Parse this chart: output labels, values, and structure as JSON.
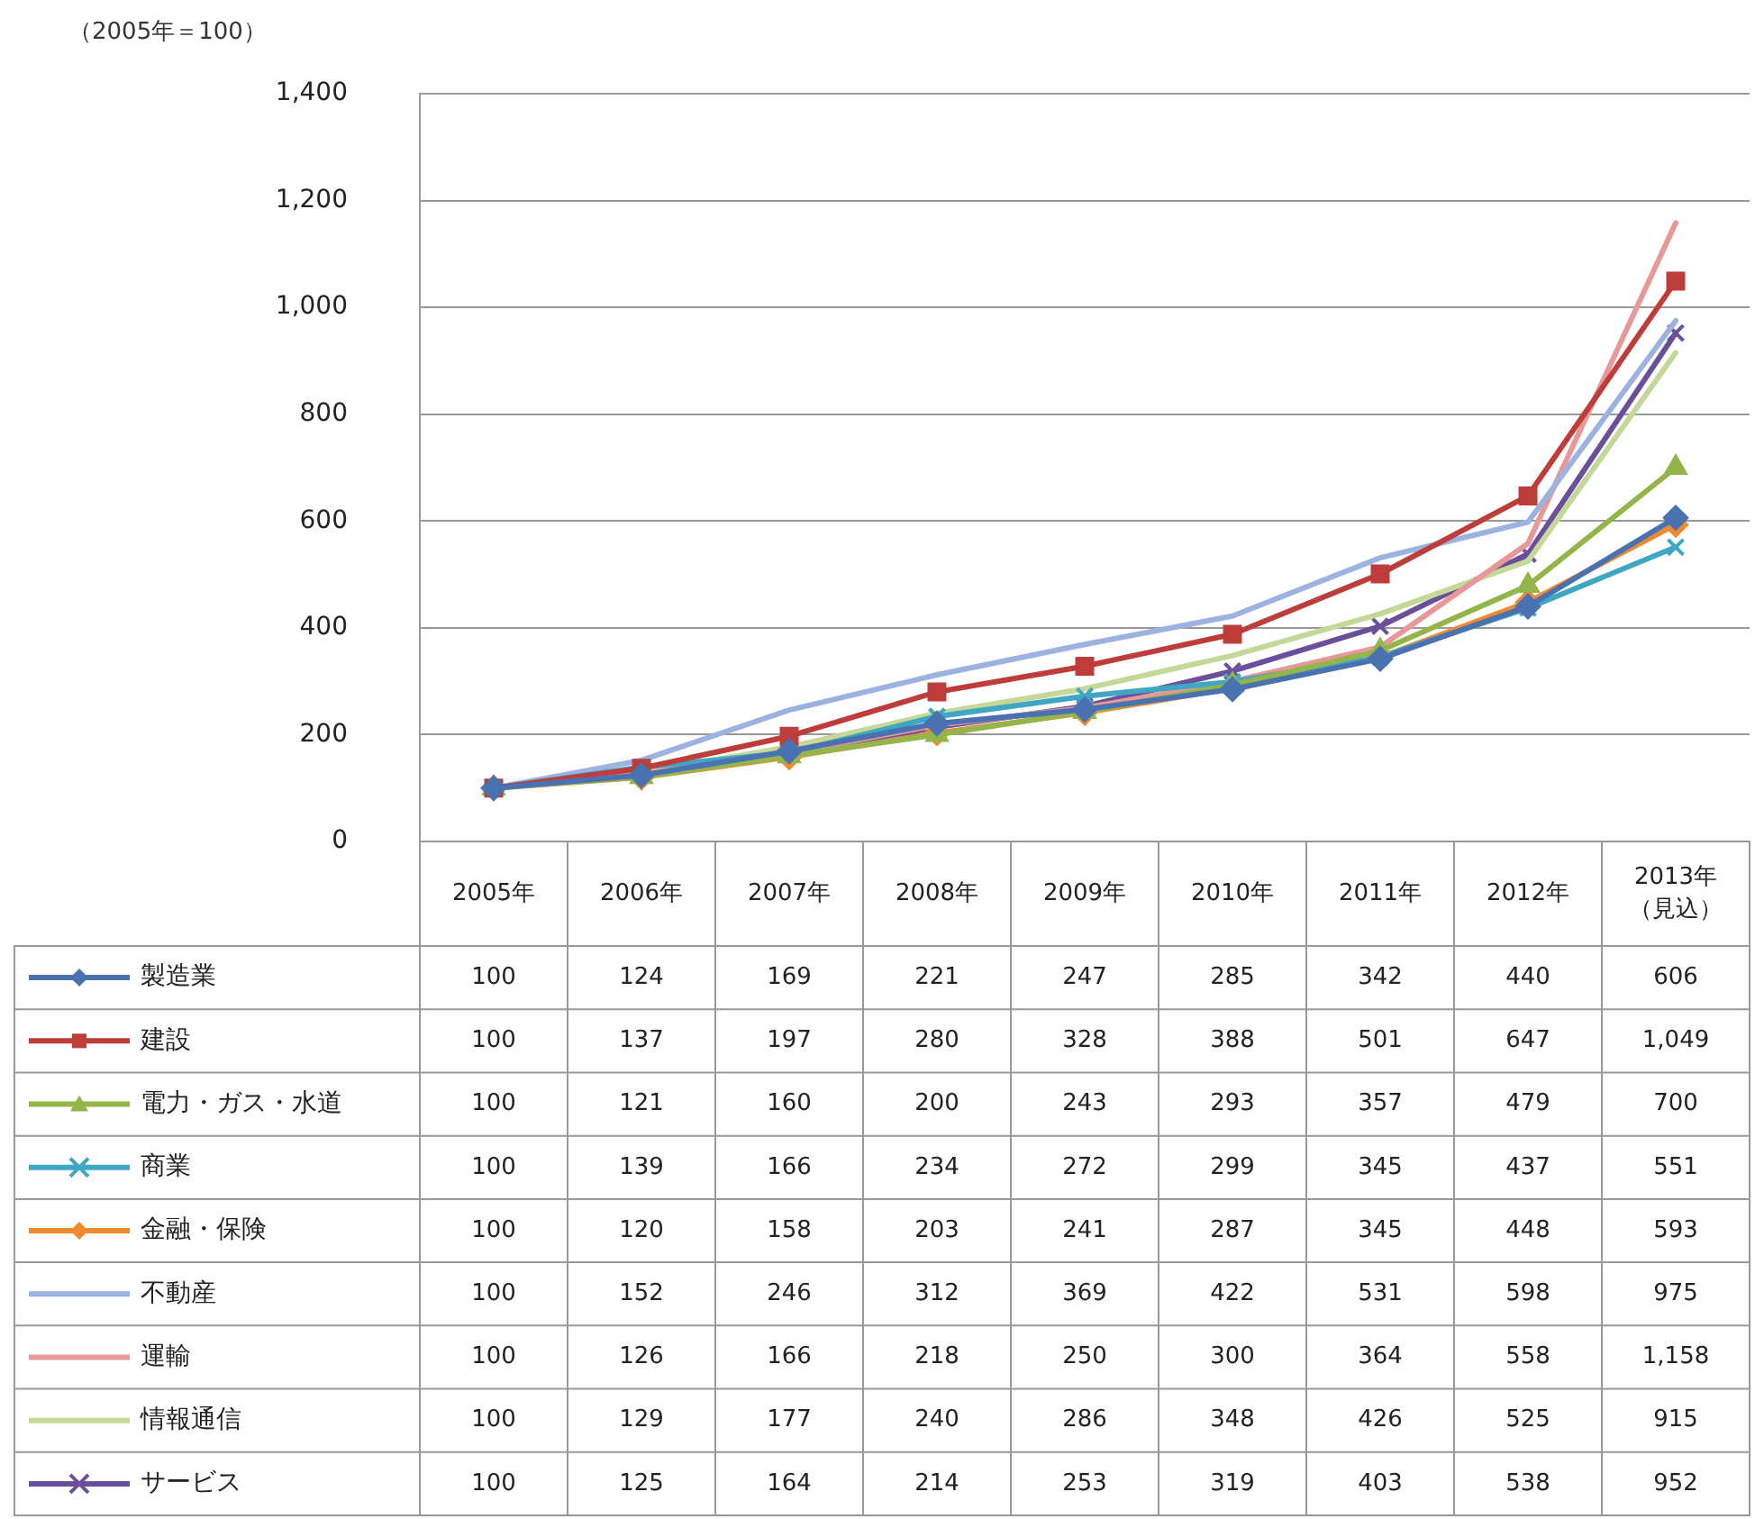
{
  "chart_data": {
    "type": "line",
    "ylabel": "（2005年＝100）",
    "categories": [
      "2005年",
      "2006年",
      "2007年",
      "2008年",
      "2009年",
      "2010年",
      "2011年",
      "2012年",
      "2013年（見込）"
    ],
    "ylim": [
      0,
      1400
    ],
    "yticks": [
      0,
      200,
      400,
      600,
      800,
      {
        "value": 1000,
        "label": "1,000"
      },
      {
        "value": 1200,
        "label": "1,200"
      },
      {
        "value": 1400,
        "label": "1,400"
      }
    ],
    "grid": "y",
    "legend": "bottom left",
    "series": [
      {
        "name": "製造業",
        "color": "#4a72b0",
        "marker": "diamond",
        "values": [
          100,
          124,
          169,
          221,
          247,
          285,
          342,
          440,
          606
        ],
        "value_labels": [
          "100",
          "124",
          "169",
          "221",
          "247",
          "285",
          "342",
          "440",
          "606"
        ]
      },
      {
        "name": "建設",
        "color": "#be3c3a",
        "marker": "square",
        "values": [
          100,
          137,
          197,
          280,
          328,
          388,
          501,
          647,
          1049
        ],
        "value_labels": [
          "100",
          "137",
          "197",
          "280",
          "328",
          "388",
          "501",
          "647",
          "1,049"
        ]
      },
      {
        "name": "電力・ガス・水道",
        "color": "#94b54a",
        "marker": "triangle",
        "values": [
          100,
          121,
          160,
          200,
          243,
          293,
          357,
          479,
          700
        ],
        "value_labels": [
          "100",
          "121",
          "160",
          "200",
          "243",
          "293",
          "357",
          "479",
          "700"
        ]
      },
      {
        "name": "商業",
        "color": "#3fa6c4",
        "marker": "cross",
        "values": [
          100,
          139,
          166,
          234,
          272,
          299,
          345,
          437,
          551
        ],
        "value_labels": [
          "100",
          "139",
          "166",
          "234",
          "272",
          "299",
          "345",
          "437",
          "551"
        ]
      },
      {
        "name": "金融・保険",
        "color": "#f08a2e",
        "marker": "diamond",
        "values": [
          100,
          120,
          158,
          203,
          241,
          287,
          345,
          448,
          593
        ],
        "value_labels": [
          "100",
          "120",
          "158",
          "203",
          "241",
          "287",
          "345",
          "448",
          "593"
        ]
      },
      {
        "name": "不動産",
        "color": "#9cb2e0",
        "marker": "none",
        "values": [
          100,
          152,
          246,
          312,
          369,
          422,
          531,
          598,
          975
        ],
        "value_labels": [
          "100",
          "152",
          "246",
          "312",
          "369",
          "422",
          "531",
          "598",
          "975"
        ]
      },
      {
        "name": "運輸",
        "color": "#e89898",
        "marker": "none",
        "values": [
          100,
          126,
          166,
          218,
          250,
          300,
          364,
          558,
          1158
        ],
        "value_labels": [
          "100",
          "126",
          "166",
          "218",
          "250",
          "300",
          "364",
          "558",
          "1,158"
        ]
      },
      {
        "name": "情報通信",
        "color": "#c4d898",
        "marker": "none",
        "values": [
          100,
          129,
          177,
          240,
          286,
          348,
          426,
          525,
          915
        ],
        "value_labels": [
          "100",
          "129",
          "177",
          "240",
          "286",
          "348",
          "426",
          "525",
          "915"
        ]
      },
      {
        "name": "サービス",
        "color": "#6a4f9a",
        "marker": "cross",
        "values": [
          100,
          125,
          164,
          214,
          253,
          319,
          403,
          538,
          952
        ],
        "value_labels": [
          "100",
          "125",
          "164",
          "214",
          "253",
          "319",
          "403",
          "538",
          "952"
        ]
      }
    ]
  }
}
